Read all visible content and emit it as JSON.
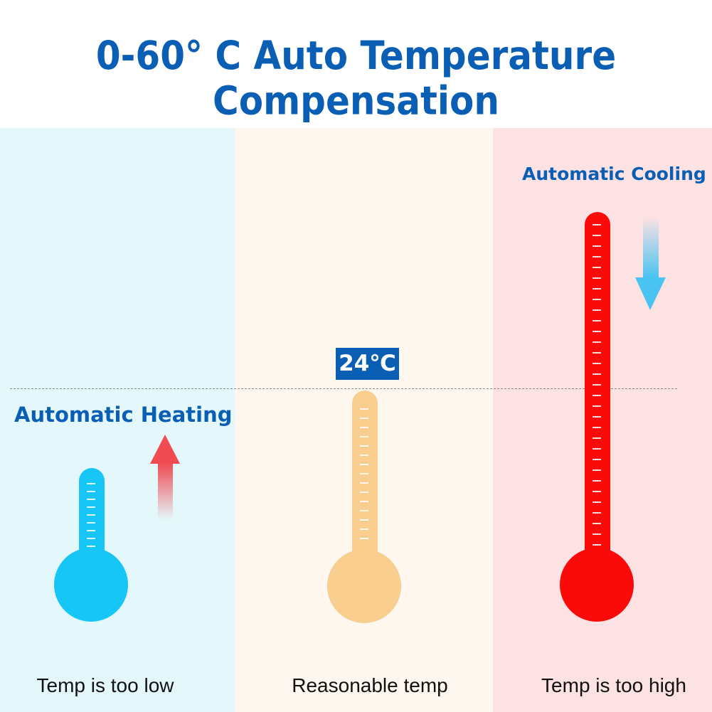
{
  "title": "0-60° C Auto Temperature Compensation",
  "panels": {
    "low": {
      "caption": "Temp is too low",
      "action": "Automatic Heating",
      "color": "#16c6f7",
      "bg": "#e4f8fc",
      "arrow_color": "#f04a52"
    },
    "mid": {
      "caption": "Reasonable temp",
      "reading": "24℃",
      "color": "#f9ce8f",
      "bg": "#fdf7ef"
    },
    "high": {
      "caption": "Temp is too high",
      "action": "Automatic Cooling",
      "color": "#fb0a0a",
      "bg": "#fde2e3",
      "arrow_color": "#49c3f2"
    }
  },
  "accent": "#0a5fb5",
  "icons": [
    "thermometer-icon",
    "up-arrow-icon",
    "down-arrow-icon"
  ]
}
